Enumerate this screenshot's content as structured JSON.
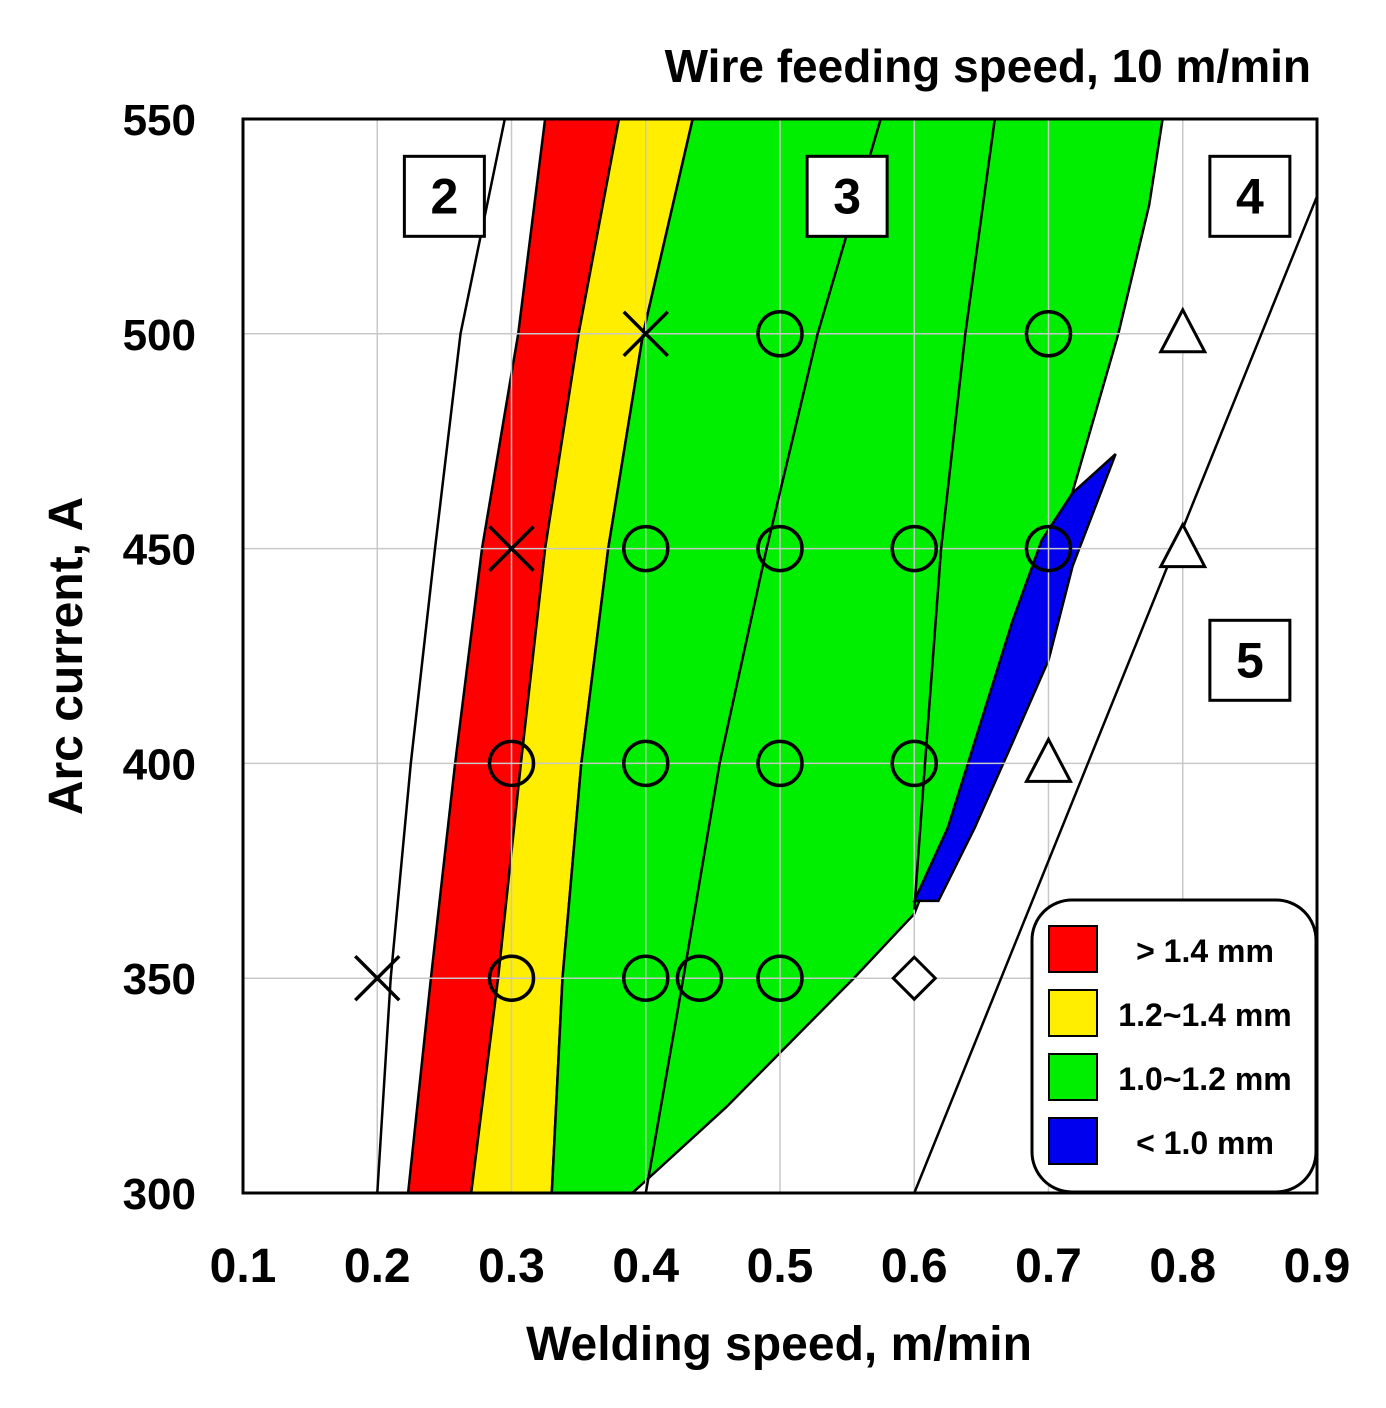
{
  "chart_data": {
    "type": "scatter",
    "title": "Wire feeding speed, 10 m/min",
    "xlabel": "Welding speed, m/min",
    "ylabel": "Arc current, A",
    "xlim": [
      0.1,
      0.9
    ],
    "ylim": [
      300,
      550
    ],
    "x_ticks": [
      "0.1",
      "0.2",
      "0.3",
      "0.4",
      "0.5",
      "0.6",
      "0.7",
      "0.8",
      "0.9"
    ],
    "y_ticks": [
      "300",
      "350",
      "400",
      "450",
      "500",
      "550"
    ],
    "grid": true,
    "colors": {
      "red": "#ff0000",
      "yellow": "#ffee00",
      "green": "#00ee00",
      "blue": "#0000ee"
    },
    "legend": {
      "position": "bottom-right",
      "entries": [
        {
          "label": "> 1.4 mm",
          "color": "#ff0000"
        },
        {
          "label": "1.2~1.4 mm",
          "color": "#ffee00"
        },
        {
          "label": "1.0~1.2 mm",
          "color": "#00ee00"
        },
        {
          "label": "< 1.0 mm",
          "color": "#0000ee"
        }
      ]
    },
    "region_labels": [
      {
        "text": "2",
        "x": 0.25,
        "y": 532
      },
      {
        "text": "3",
        "x": 0.55,
        "y": 532
      },
      {
        "text": "4",
        "x": 0.85,
        "y": 532
      },
      {
        "text": "5",
        "x": 0.85,
        "y": 424
      }
    ],
    "bands": [
      {
        "name": "> 1.4 mm",
        "color": "#ff0000",
        "left": [
          [
            0.223,
            300
          ],
          [
            0.24,
            350
          ],
          [
            0.258,
            400
          ],
          [
            0.278,
            450
          ],
          [
            0.305,
            500
          ],
          [
            0.325,
            550
          ]
        ],
        "right": [
          [
            0.27,
            300
          ],
          [
            0.29,
            350
          ],
          [
            0.307,
            400
          ],
          [
            0.325,
            450
          ],
          [
            0.35,
            500
          ],
          [
            0.38,
            550
          ]
        ]
      },
      {
        "name": "1.2~1.4 mm",
        "color": "#ffee00",
        "left": [
          [
            0.27,
            300
          ],
          [
            0.29,
            350
          ],
          [
            0.307,
            400
          ],
          [
            0.325,
            450
          ],
          [
            0.35,
            500
          ],
          [
            0.38,
            550
          ]
        ],
        "right": [
          [
            0.33,
            300
          ],
          [
            0.338,
            350
          ],
          [
            0.352,
            400
          ],
          [
            0.372,
            450
          ],
          [
            0.398,
            500
          ],
          [
            0.435,
            550
          ]
        ]
      },
      {
        "name": "1.0~1.2 mm",
        "color": "#00ee00",
        "left": [
          [
            0.33,
            300
          ],
          [
            0.338,
            350
          ],
          [
            0.352,
            400
          ],
          [
            0.372,
            450
          ],
          [
            0.398,
            500
          ],
          [
            0.435,
            550
          ]
        ],
        "right": [
          [
            0.39,
            300
          ],
          [
            0.46,
            320
          ],
          [
            0.555,
            350
          ],
          [
            0.6,
            365
          ],
          [
            0.625,
            385
          ],
          [
            0.653,
            410
          ],
          [
            0.68,
            435
          ],
          [
            0.715,
            460
          ],
          [
            0.752,
            500
          ],
          [
            0.775,
            530
          ],
          [
            0.785,
            550
          ]
        ]
      }
    ],
    "blue_region": [
      [
        0.6,
        368
      ],
      [
        0.625,
        385
      ],
      [
        0.652,
        412
      ],
      [
        0.673,
        433
      ],
      [
        0.695,
        452
      ],
      [
        0.718,
        463
      ],
      [
        0.75,
        472
      ],
      [
        0.718,
        446
      ],
      [
        0.7,
        424
      ],
      [
        0.672,
        404
      ],
      [
        0.645,
        385
      ],
      [
        0.618,
        368
      ]
    ],
    "boundary_lines": [
      {
        "name": "boundary-2",
        "points": [
          [
            0.2,
            300
          ],
          [
            0.21,
            350
          ],
          [
            0.225,
            400
          ],
          [
            0.243,
            450
          ],
          [
            0.262,
            500
          ],
          [
            0.295,
            550
          ]
        ]
      },
      {
        "name": "boundary-3a",
        "points": [
          [
            0.4,
            300
          ],
          [
            0.428,
            350
          ],
          [
            0.455,
            400
          ],
          [
            0.49,
            450
          ],
          [
            0.528,
            500
          ],
          [
            0.575,
            550
          ]
        ]
      },
      {
        "name": "boundary-3b",
        "points": [
          [
            0.6,
            366
          ],
          [
            0.608,
            400
          ],
          [
            0.62,
            450
          ],
          [
            0.638,
            500
          ],
          [
            0.66,
            550
          ]
        ]
      },
      {
        "name": "boundary-4-5",
        "points": [
          [
            0.6,
            300
          ],
          [
            0.9,
            532
          ]
        ]
      }
    ],
    "series": [
      {
        "name": "X",
        "marker": "x",
        "x": [
          0.4,
          0.3,
          0.2
        ],
        "y": [
          500,
          450,
          350
        ]
      },
      {
        "name": "O",
        "marker": "circle",
        "x": [
          0.5,
          0.7,
          0.4,
          0.5,
          0.6,
          0.7,
          0.3,
          0.4,
          0.5,
          0.6,
          0.3,
          0.4,
          0.44,
          0.5
        ],
        "y": [
          500,
          500,
          450,
          450,
          450,
          450,
          400,
          400,
          400,
          400,
          350,
          350,
          350,
          350
        ]
      },
      {
        "name": "triangle",
        "marker": "triangle",
        "x": [
          0.8,
          0.8,
          0.7
        ],
        "y": [
          500,
          450,
          400
        ]
      },
      {
        "name": "diamond",
        "marker": "diamond",
        "x": [
          0.6
        ],
        "y": [
          350
        ]
      }
    ]
  }
}
